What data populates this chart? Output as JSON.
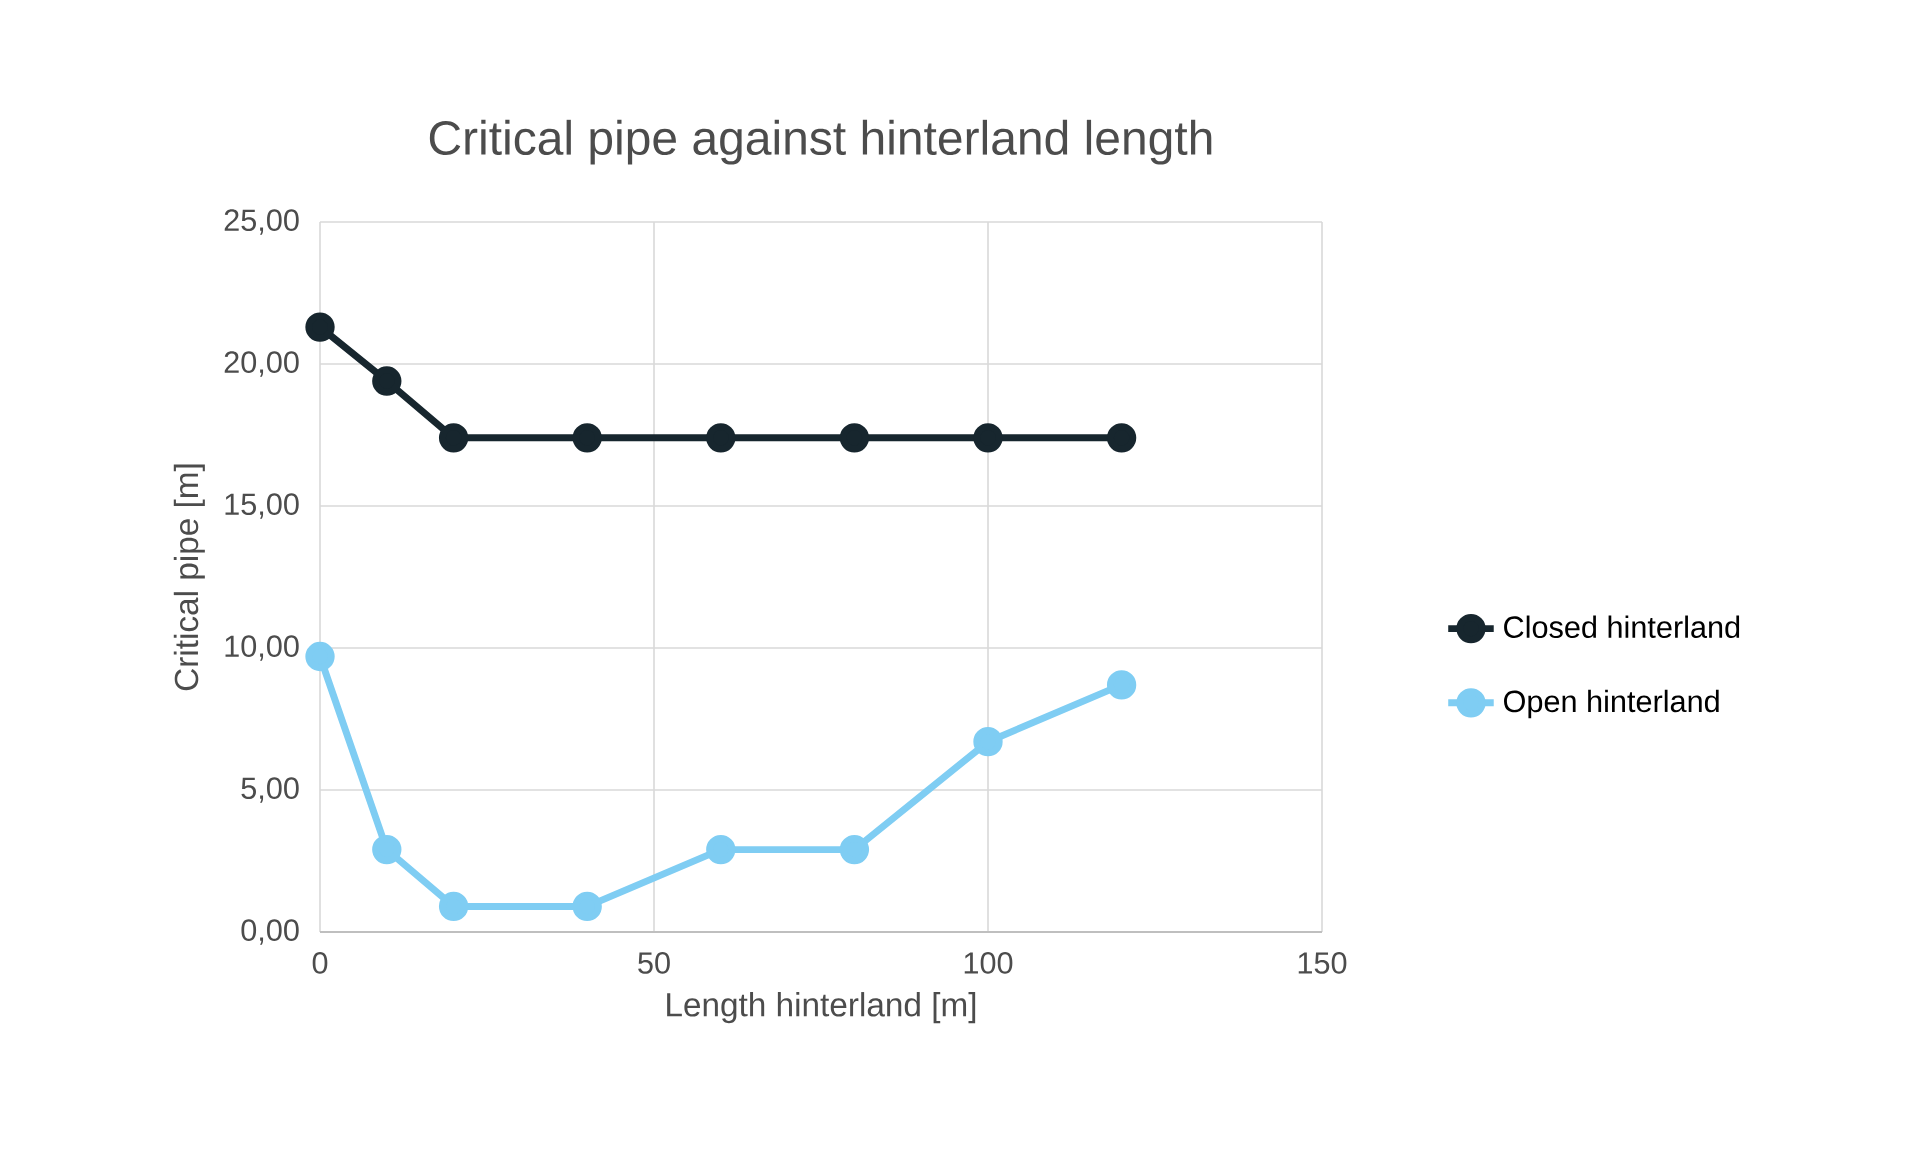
{
  "chart_data": {
    "type": "line",
    "title": "Critical pipe against hinterland length",
    "xlabel": "Length hinterland [m]",
    "ylabel": "Critical pipe [m]",
    "x": [
      0,
      10,
      20,
      40,
      60,
      80,
      100,
      120
    ],
    "series": [
      {
        "name": "Closed hinterland",
        "color": "#17262e",
        "values": [
          21.3,
          19.4,
          17.4,
          17.4,
          17.4,
          17.4,
          17.4,
          17.4
        ]
      },
      {
        "name": "Open hinterland",
        "color": "#7fcdf3",
        "values": [
          9.7,
          2.9,
          0.9,
          0.9,
          2.9,
          2.9,
          6.7,
          8.7
        ]
      }
    ],
    "xlim": [
      0,
      150
    ],
    "xticks": [
      0,
      50,
      100,
      150
    ],
    "ylim": [
      0,
      25
    ],
    "yticks": [
      {
        "value": 0,
        "label": "0,00"
      },
      {
        "value": 5,
        "label": "5,00"
      },
      {
        "value": 10,
        "label": "10,00"
      },
      {
        "value": 15,
        "label": "15,00"
      },
      {
        "value": 20,
        "label": "20,00"
      },
      {
        "value": 25,
        "label": "25,00"
      }
    ],
    "grid": true,
    "legend": "right",
    "marker": "circle",
    "line_style": "solid"
  }
}
